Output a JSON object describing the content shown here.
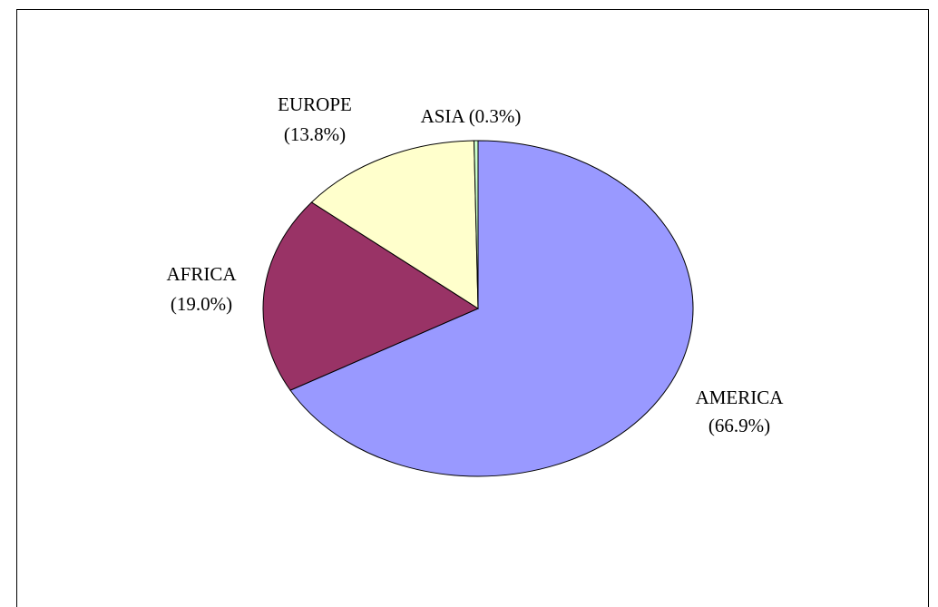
{
  "chart_data": {
    "type": "pie",
    "categories": [
      "AMERICA",
      "AFRICA",
      "EUROPE",
      "ASIA"
    ],
    "values": [
      66.9,
      19.0,
      13.8,
      0.3
    ],
    "value_labels": [
      "(66.9%)",
      "(19.0%)",
      "(13.8%)",
      "(0.3%)"
    ],
    "colors": [
      "#9999ff",
      "#993366",
      "#ffffcc",
      "#ccffcc"
    ]
  }
}
